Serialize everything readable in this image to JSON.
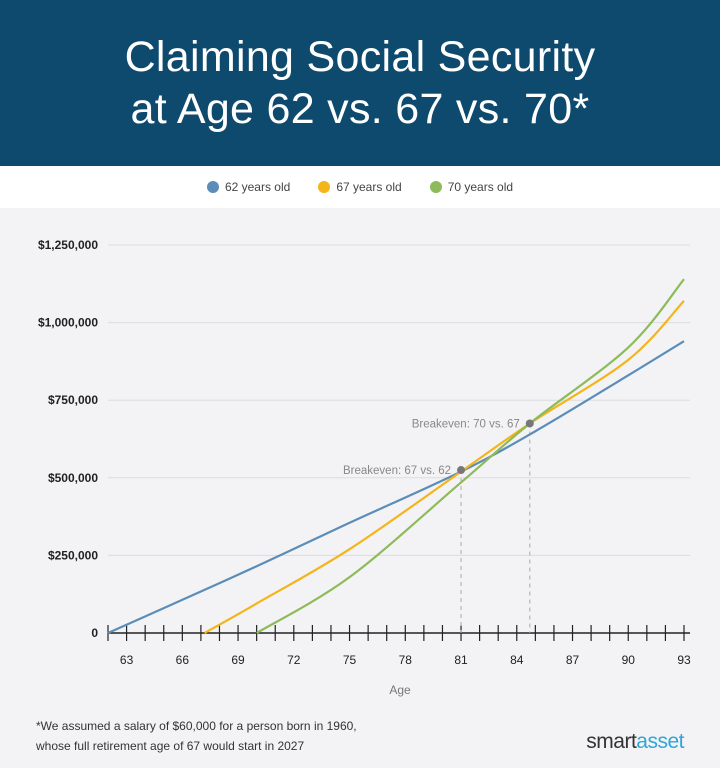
{
  "title_line1": "Claiming Social Security",
  "title_line2": "at Age 62 vs. 67 vs. 70*",
  "footnote_line1": "*We assumed a salary of $60,000 for a person born in 1960,",
  "footnote_line2": "whose full retirement age of 67 would start in 2027",
  "logo": {
    "part1": "smart",
    "part2": "asset"
  },
  "chart_data": {
    "type": "line",
    "xlabel": "Age",
    "ylabel": "",
    "xlim": [
      62,
      93
    ],
    "ylim": [
      0,
      1250000
    ],
    "xticks": [
      "63",
      "66",
      "69",
      "72",
      "75",
      "78",
      "81",
      "84",
      "87",
      "90",
      "93"
    ],
    "xtick_values": [
      63,
      66,
      69,
      72,
      75,
      78,
      81,
      84,
      87,
      90,
      93
    ],
    "yticks": [
      "0",
      "$250,000",
      "$500,000",
      "$750,000",
      "$1,000,000",
      "$1,250,000"
    ],
    "ytick_values": [
      0,
      250000,
      500000,
      750000,
      1000000,
      1250000
    ],
    "grid": true,
    "legend_position": "top-center",
    "series": [
      {
        "name": "62 years old",
        "color": "#5b8db8",
        "x": [
          62,
          65,
          70,
          75,
          81,
          85,
          90,
          93
        ],
        "y": [
          0,
          80000,
          215000,
          355000,
          520000,
          650000,
          830000,
          940000
        ]
      },
      {
        "name": "67 years old",
        "color": "#f4b41a",
        "x": [
          67.2,
          70,
          75,
          81,
          84.7,
          90,
          93
        ],
        "y": [
          0,
          95000,
          270000,
          520000,
          675000,
          880000,
          1070000
        ]
      },
      {
        "name": "70 years old",
        "color": "#8dbb5a",
        "x": [
          70,
          75,
          81,
          84.7,
          90,
          93
        ],
        "y": [
          0,
          180000,
          485000,
          675000,
          920000,
          1140000
        ]
      }
    ],
    "annotations": [
      {
        "text": "Breakeven: 67 vs. 62",
        "x": 81,
        "y": 525000
      },
      {
        "text": "Breakeven: 70 vs. 67",
        "x": 84.7,
        "y": 675000
      }
    ]
  }
}
